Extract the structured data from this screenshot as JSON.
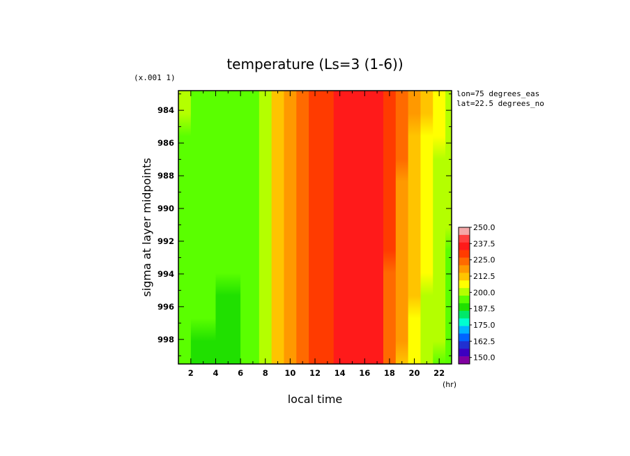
{
  "chart_data": {
    "type": "heatmap",
    "title": "temperature (Ls=3 (1-6))",
    "xlabel": "local time",
    "x_unit": "(hr)",
    "ylabel": "sigma at layer midpoints",
    "y_scale_note": "(x.001 1)",
    "annotations": [
      "lon=75 degrees_eas",
      "lat=22.5 degrees_no"
    ],
    "xlim": [
      1,
      23
    ],
    "ylim": [
      999.5,
      982.8
    ],
    "x_ticks": [
      "2",
      "4",
      "6",
      "8",
      "10",
      "12",
      "14",
      "16",
      "18",
      "20",
      "22"
    ],
    "y_ticks": [
      "984",
      "986",
      "988",
      "990",
      "992",
      "994",
      "996",
      "998"
    ],
    "colorbar": {
      "range": [
        145,
        250
      ],
      "labels": [
        "250.0",
        "237.5",
        "225.0",
        "212.5",
        "200.0",
        "187.5",
        "175.0",
        "162.5",
        "150.0"
      ],
      "colors_top_to_bottom": [
        "#f4a8a8",
        "#ff4040",
        "#ff1a1a",
        "#ff3b00",
        "#ff6a00",
        "#ff9900",
        "#ffc400",
        "#ffff00",
        "#b4ff00",
        "#5aff00",
        "#20e000",
        "#00e86a",
        "#00ffd0",
        "#00b4ff",
        "#0064ff",
        "#2030d0",
        "#3c00c0",
        "#8000a0"
      ]
    },
    "temperature_profile_by_local_time": {
      "x": [
        1,
        3,
        5,
        7,
        8,
        9,
        10,
        11,
        12,
        13,
        14,
        15,
        16,
        17,
        18,
        19,
        20,
        21,
        22,
        23
      ],
      "values_top": [
        198,
        196,
        196,
        197,
        203,
        210,
        216,
        222,
        227,
        231,
        234,
        236,
        237,
        236,
        230,
        223,
        216,
        210,
        205,
        201
      ],
      "values_bottom": [
        194,
        191,
        190,
        196,
        203,
        210,
        216,
        222,
        227,
        231,
        234,
        236,
        236,
        234,
        225,
        215,
        207,
        201,
        197,
        195
      ]
    }
  }
}
